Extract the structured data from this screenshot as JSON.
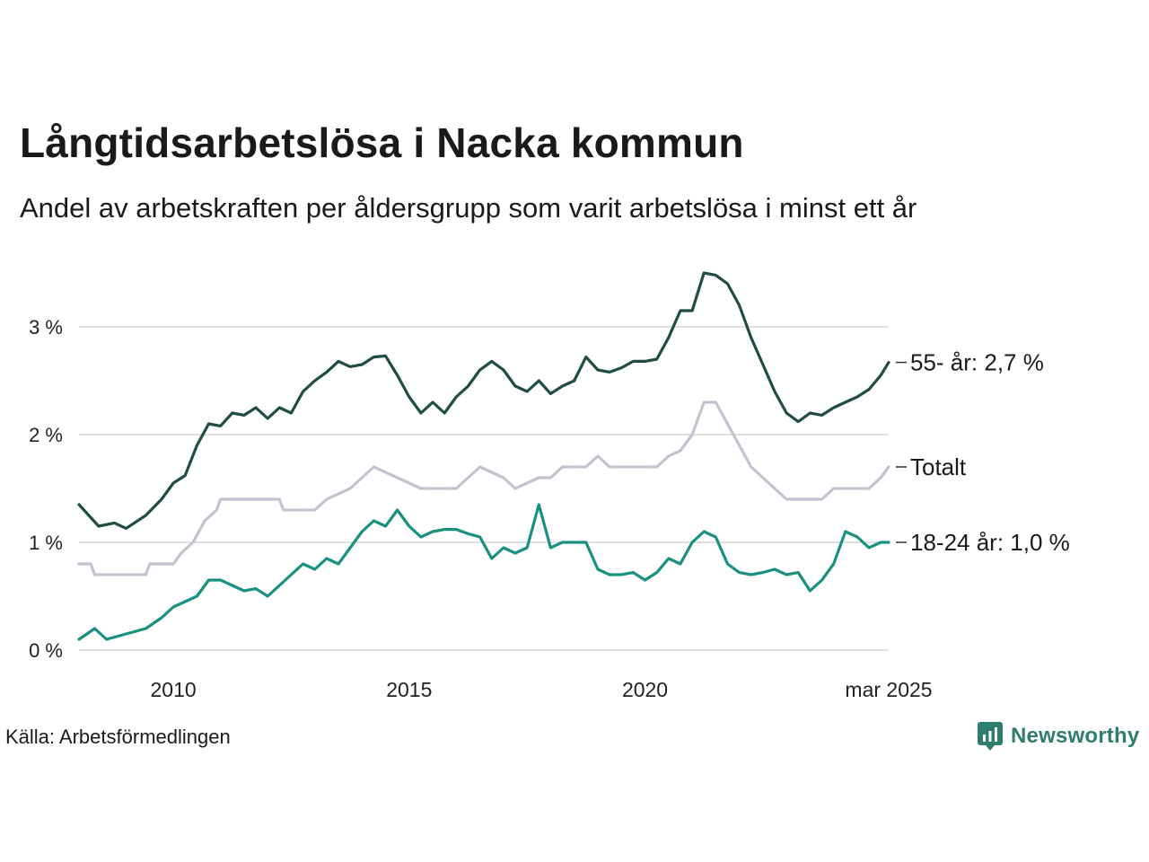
{
  "header": {
    "title": "Långtidsarbetslösa i Nacka kommun",
    "subtitle": "Andel av arbetskraften per åldersgrupp som varit arbetslösa i minst ett år"
  },
  "footer": {
    "source": "Källa: Arbetsförmedlingen",
    "brand": "Newsworthy",
    "brand_icon": "bar-chart-speech-bubble-icon",
    "brand_color": "#2f7d6d"
  },
  "chart_data": {
    "type": "line",
    "x_range": [
      "2008-01",
      "2025-03"
    ],
    "x_ticks": [
      {
        "x": "2010-01",
        "label": "2010"
      },
      {
        "x": "2015-01",
        "label": "2015"
      },
      {
        "x": "2020-01",
        "label": "2020"
      },
      {
        "x": "2025-03",
        "label": "mar 2025"
      }
    ],
    "y_range": [
      0,
      3.5
    ],
    "y_ticks": [
      {
        "value": 0,
        "label": "0 %"
      },
      {
        "value": 1,
        "label": "1 %"
      },
      {
        "value": 2,
        "label": "2 %"
      },
      {
        "value": 3,
        "label": "3 %"
      }
    ],
    "grid": "horizontal",
    "series": [
      {
        "key": "age55",
        "label": "55- år: 2,7 %",
        "color": "#1f4d45",
        "points": [
          [
            "2008-01",
            1.35
          ],
          [
            "2008-06",
            1.15
          ],
          [
            "2008-10",
            1.18
          ],
          [
            "2009-01",
            1.13
          ],
          [
            "2009-06",
            1.25
          ],
          [
            "2009-10",
            1.4
          ],
          [
            "2010-01",
            1.55
          ],
          [
            "2010-04",
            1.62
          ],
          [
            "2010-07",
            1.9
          ],
          [
            "2010-10",
            2.1
          ],
          [
            "2011-01",
            2.08
          ],
          [
            "2011-04",
            2.2
          ],
          [
            "2011-07",
            2.18
          ],
          [
            "2011-10",
            2.25
          ],
          [
            "2012-01",
            2.15
          ],
          [
            "2012-04",
            2.25
          ],
          [
            "2012-07",
            2.2
          ],
          [
            "2012-10",
            2.4
          ],
          [
            "2013-01",
            2.5
          ],
          [
            "2013-04",
            2.58
          ],
          [
            "2013-07",
            2.68
          ],
          [
            "2013-10",
            2.63
          ],
          [
            "2014-01",
            2.65
          ],
          [
            "2014-04",
            2.72
          ],
          [
            "2014-07",
            2.73
          ],
          [
            "2014-10",
            2.55
          ],
          [
            "2015-01",
            2.35
          ],
          [
            "2015-04",
            2.2
          ],
          [
            "2015-07",
            2.3
          ],
          [
            "2015-10",
            2.2
          ],
          [
            "2016-01",
            2.35
          ],
          [
            "2016-04",
            2.45
          ],
          [
            "2016-07",
            2.6
          ],
          [
            "2016-10",
            2.68
          ],
          [
            "2017-01",
            2.6
          ],
          [
            "2017-04",
            2.45
          ],
          [
            "2017-07",
            2.4
          ],
          [
            "2017-10",
            2.5
          ],
          [
            "2018-01",
            2.38
          ],
          [
            "2018-04",
            2.45
          ],
          [
            "2018-07",
            2.5
          ],
          [
            "2018-10",
            2.72
          ],
          [
            "2019-01",
            2.6
          ],
          [
            "2019-04",
            2.58
          ],
          [
            "2019-07",
            2.62
          ],
          [
            "2019-10",
            2.68
          ],
          [
            "2020-01",
            2.68
          ],
          [
            "2020-04",
            2.7
          ],
          [
            "2020-07",
            2.9
          ],
          [
            "2020-10",
            3.15
          ],
          [
            "2021-01",
            3.15
          ],
          [
            "2021-04",
            3.5
          ],
          [
            "2021-07",
            3.48
          ],
          [
            "2021-10",
            3.4
          ],
          [
            "2022-01",
            3.2
          ],
          [
            "2022-04",
            2.9
          ],
          [
            "2022-07",
            2.65
          ],
          [
            "2022-10",
            2.4
          ],
          [
            "2023-01",
            2.2
          ],
          [
            "2023-04",
            2.12
          ],
          [
            "2023-07",
            2.2
          ],
          [
            "2023-10",
            2.18
          ],
          [
            "2024-01",
            2.25
          ],
          [
            "2024-04",
            2.3
          ],
          [
            "2024-07",
            2.35
          ],
          [
            "2024-10",
            2.42
          ],
          [
            "2025-01",
            2.55
          ],
          [
            "2025-03",
            2.67
          ]
        ]
      },
      {
        "key": "total",
        "label": "Totalt",
        "color": "#c4c2cf",
        "points": [
          [
            "2008-01",
            0.8
          ],
          [
            "2008-04",
            0.8
          ],
          [
            "2008-05",
            0.7
          ],
          [
            "2009-06",
            0.7
          ],
          [
            "2009-07",
            0.8
          ],
          [
            "2010-01",
            0.8
          ],
          [
            "2010-03",
            0.9
          ],
          [
            "2010-06",
            1.0
          ],
          [
            "2010-09",
            1.2
          ],
          [
            "2010-12",
            1.3
          ],
          [
            "2011-01",
            1.4
          ],
          [
            "2012-04",
            1.4
          ],
          [
            "2012-05",
            1.3
          ],
          [
            "2013-01",
            1.3
          ],
          [
            "2013-04",
            1.4
          ],
          [
            "2013-10",
            1.5
          ],
          [
            "2014-01",
            1.6
          ],
          [
            "2014-04",
            1.7
          ],
          [
            "2014-10",
            1.6
          ],
          [
            "2015-01",
            1.55
          ],
          [
            "2015-04",
            1.5
          ],
          [
            "2016-01",
            1.5
          ],
          [
            "2016-04",
            1.6
          ],
          [
            "2016-07",
            1.7
          ],
          [
            "2017-01",
            1.6
          ],
          [
            "2017-04",
            1.5
          ],
          [
            "2017-10",
            1.6
          ],
          [
            "2018-01",
            1.6
          ],
          [
            "2018-04",
            1.7
          ],
          [
            "2018-10",
            1.7
          ],
          [
            "2019-01",
            1.8
          ],
          [
            "2019-04",
            1.7
          ],
          [
            "2020-01",
            1.7
          ],
          [
            "2020-04",
            1.7
          ],
          [
            "2020-07",
            1.8
          ],
          [
            "2020-10",
            1.85
          ],
          [
            "2021-01",
            2.0
          ],
          [
            "2021-04",
            2.3
          ],
          [
            "2021-07",
            2.3
          ],
          [
            "2021-10",
            2.1
          ],
          [
            "2022-01",
            1.9
          ],
          [
            "2022-04",
            1.7
          ],
          [
            "2022-07",
            1.6
          ],
          [
            "2022-10",
            1.5
          ],
          [
            "2023-01",
            1.4
          ],
          [
            "2023-10",
            1.4
          ],
          [
            "2024-01",
            1.5
          ],
          [
            "2024-10",
            1.5
          ],
          [
            "2025-01",
            1.6
          ],
          [
            "2025-03",
            1.7
          ]
        ]
      },
      {
        "key": "age18_24",
        "label": "18-24 år: 1,0 %",
        "color": "#1a9080",
        "points": [
          [
            "2008-01",
            0.1
          ],
          [
            "2008-03",
            0.15
          ],
          [
            "2008-05",
            0.2
          ],
          [
            "2008-08",
            0.1
          ],
          [
            "2009-01",
            0.15
          ],
          [
            "2009-06",
            0.2
          ],
          [
            "2009-10",
            0.3
          ],
          [
            "2010-01",
            0.4
          ],
          [
            "2010-04",
            0.45
          ],
          [
            "2010-07",
            0.5
          ],
          [
            "2010-10",
            0.65
          ],
          [
            "2011-01",
            0.65
          ],
          [
            "2011-04",
            0.6
          ],
          [
            "2011-07",
            0.55
          ],
          [
            "2011-10",
            0.57
          ],
          [
            "2012-01",
            0.5
          ],
          [
            "2012-04",
            0.6
          ],
          [
            "2012-07",
            0.7
          ],
          [
            "2012-10",
            0.8
          ],
          [
            "2013-01",
            0.75
          ],
          [
            "2013-04",
            0.85
          ],
          [
            "2013-07",
            0.8
          ],
          [
            "2013-10",
            0.95
          ],
          [
            "2014-01",
            1.1
          ],
          [
            "2014-04",
            1.2
          ],
          [
            "2014-07",
            1.15
          ],
          [
            "2014-10",
            1.3
          ],
          [
            "2015-01",
            1.15
          ],
          [
            "2015-04",
            1.05
          ],
          [
            "2015-07",
            1.1
          ],
          [
            "2015-10",
            1.12
          ],
          [
            "2016-01",
            1.12
          ],
          [
            "2016-04",
            1.08
          ],
          [
            "2016-07",
            1.05
          ],
          [
            "2016-10",
            0.85
          ],
          [
            "2017-01",
            0.95
          ],
          [
            "2017-04",
            0.9
          ],
          [
            "2017-07",
            0.95
          ],
          [
            "2017-10",
            1.35
          ],
          [
            "2018-01",
            0.95
          ],
          [
            "2018-04",
            1.0
          ],
          [
            "2018-07",
            1.0
          ],
          [
            "2018-10",
            1.0
          ],
          [
            "2019-01",
            0.75
          ],
          [
            "2019-04",
            0.7
          ],
          [
            "2019-07",
            0.7
          ],
          [
            "2019-10",
            0.72
          ],
          [
            "2020-01",
            0.65
          ],
          [
            "2020-04",
            0.72
          ],
          [
            "2020-07",
            0.85
          ],
          [
            "2020-10",
            0.8
          ],
          [
            "2021-01",
            1.0
          ],
          [
            "2021-04",
            1.1
          ],
          [
            "2021-07",
            1.05
          ],
          [
            "2021-10",
            0.8
          ],
          [
            "2022-01",
            0.72
          ],
          [
            "2022-04",
            0.7
          ],
          [
            "2022-07",
            0.72
          ],
          [
            "2022-10",
            0.75
          ],
          [
            "2023-01",
            0.7
          ],
          [
            "2023-04",
            0.72
          ],
          [
            "2023-07",
            0.55
          ],
          [
            "2023-10",
            0.65
          ],
          [
            "2024-01",
            0.8
          ],
          [
            "2024-04",
            1.1
          ],
          [
            "2024-07",
            1.05
          ],
          [
            "2024-10",
            0.95
          ],
          [
            "2025-01",
            1.0
          ],
          [
            "2025-03",
            1.0
          ]
        ]
      }
    ]
  }
}
